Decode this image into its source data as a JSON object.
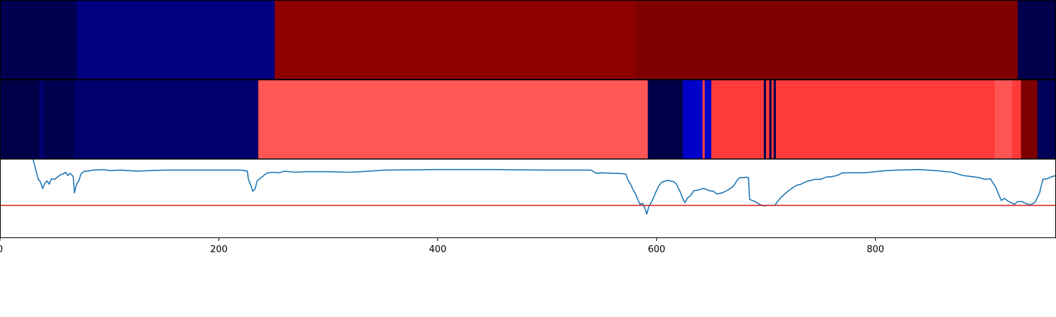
{
  "chart_data": {
    "type": "heatmap",
    "xlim": [
      0,
      965
    ],
    "x_ticks": [
      {
        "value": 0,
        "label": "0"
      },
      {
        "value": 200,
        "label": "200"
      },
      {
        "value": 400,
        "label": "400"
      },
      {
        "value": 600,
        "label": "600"
      },
      {
        "value": 800,
        "label": "800"
      }
    ],
    "band_rows": [
      {
        "segments": [
          {
            "x0": 0,
            "x1": 70,
            "color": "#000050"
          },
          {
            "x0": 70,
            "x1": 251,
            "color": "#000080"
          },
          {
            "x0": 251,
            "x1": 580,
            "color": "#8e0000"
          },
          {
            "x0": 580,
            "x1": 930,
            "color": "#800000"
          },
          {
            "x0": 930,
            "x1": 965,
            "color": "#00004c"
          }
        ]
      },
      {
        "segments": [
          {
            "x0": 0,
            "x1": 36,
            "color": "#000048"
          },
          {
            "x0": 36,
            "x1": 40,
            "color": "#000070"
          },
          {
            "x0": 40,
            "x1": 68,
            "color": "#000050"
          },
          {
            "x0": 68,
            "x1": 236,
            "color": "#00006c"
          },
          {
            "x0": 236,
            "x1": 592,
            "color": "#ff5656"
          },
          {
            "x0": 592,
            "x1": 624,
            "color": "#000048"
          },
          {
            "x0": 624,
            "x1": 642,
            "color": "#0000c8"
          },
          {
            "x0": 642,
            "x1": 644,
            "color": "#ff4040"
          },
          {
            "x0": 644,
            "x1": 650,
            "color": "#0000c8"
          },
          {
            "x0": 650,
            "x1": 698,
            "color": "#ff3a3a"
          },
          {
            "x0": 698,
            "x1": 700,
            "color": "#000050"
          },
          {
            "x0": 700,
            "x1": 703,
            "color": "#ff3a3a"
          },
          {
            "x0": 703,
            "x1": 705,
            "color": "#000050"
          },
          {
            "x0": 705,
            "x1": 707,
            "color": "#ff3a3a"
          },
          {
            "x0": 707,
            "x1": 709,
            "color": "#000050"
          },
          {
            "x0": 709,
            "x1": 909,
            "color": "#ff3a3a"
          },
          {
            "x0": 909,
            "x1": 925,
            "color": "#ff5454"
          },
          {
            "x0": 925,
            "x1": 933,
            "color": "#ff3a3a"
          },
          {
            "x0": 933,
            "x1": 948,
            "color": "#7c0000"
          },
          {
            "x0": 948,
            "x1": 965,
            "color": "#000058"
          }
        ]
      }
    ],
    "line": {
      "color": "#1f77b4",
      "ylim": [
        -1.02,
        0.42
      ],
      "points": [
        [
          0,
          0.43
        ],
        [
          30,
          0.43
        ],
        [
          35,
          0.05
        ],
        [
          37,
          0.0
        ],
        [
          39,
          -0.12
        ],
        [
          41,
          -0.02
        ],
        [
          43,
          0.02
        ],
        [
          45,
          -0.04
        ],
        [
          47,
          0.06
        ],
        [
          50,
          0.05
        ],
        [
          53,
          0.1
        ],
        [
          56,
          0.14
        ],
        [
          58,
          0.15
        ],
        [
          60,
          0.18
        ],
        [
          62,
          0.12
        ],
        [
          64,
          0.16
        ],
        [
          66,
          0.12
        ],
        [
          67,
          0.1
        ],
        [
          68,
          -0.2
        ],
        [
          70,
          -0.04
        ],
        [
          72,
          0.02
        ],
        [
          74,
          0.15
        ],
        [
          77,
          0.2
        ],
        [
          80,
          0.2
        ],
        [
          85,
          0.22
        ],
        [
          95,
          0.23
        ],
        [
          100,
          0.21
        ],
        [
          110,
          0.22
        ],
        [
          125,
          0.2
        ],
        [
          150,
          0.22
        ],
        [
          200,
          0.22
        ],
        [
          220,
          0.22
        ],
        [
          226,
          0.2
        ],
        [
          227,
          0.05
        ],
        [
          229,
          -0.05
        ],
        [
          231,
          -0.17
        ],
        [
          233,
          -0.13
        ],
        [
          235,
          0.02
        ],
        [
          238,
          0.07
        ],
        [
          240,
          0.1
        ],
        [
          242,
          0.14
        ],
        [
          245,
          0.17
        ],
        [
          250,
          0.18
        ],
        [
          255,
          0.17
        ],
        [
          260,
          0.2
        ],
        [
          270,
          0.18
        ],
        [
          280,
          0.19
        ],
        [
          300,
          0.19
        ],
        [
          320,
          0.18
        ],
        [
          330,
          0.19
        ],
        [
          345,
          0.21
        ],
        [
          350,
          0.22
        ],
        [
          355,
          0.22
        ],
        [
          400,
          0.23
        ],
        [
          450,
          0.23
        ],
        [
          500,
          0.22
        ],
        [
          540,
          0.22
        ],
        [
          545,
          0.16
        ],
        [
          550,
          0.17
        ],
        [
          560,
          0.16
        ],
        [
          565,
          0.16
        ],
        [
          570,
          0.15
        ],
        [
          572,
          0.14
        ],
        [
          574,
          0.03
        ],
        [
          576,
          -0.03
        ],
        [
          579,
          -0.16
        ],
        [
          581,
          -0.23
        ],
        [
          583,
          -0.33
        ],
        [
          585,
          -0.42
        ],
        [
          587,
          -0.39
        ],
        [
          589,
          -0.46
        ],
        [
          591,
          -0.59
        ],
        [
          593,
          -0.45
        ],
        [
          595,
          -0.38
        ],
        [
          597,
          -0.3
        ],
        [
          599,
          -0.2
        ],
        [
          602,
          -0.07
        ],
        [
          605,
          0.0
        ],
        [
          610,
          0.03
        ],
        [
          615,
          0.01
        ],
        [
          618,
          -0.03
        ],
        [
          620,
          -0.12
        ],
        [
          622,
          -0.2
        ],
        [
          624,
          -0.31
        ],
        [
          626,
          -0.38
        ],
        [
          628,
          -0.3
        ],
        [
          631,
          -0.25
        ],
        [
          634,
          -0.16
        ],
        [
          638,
          -0.15
        ],
        [
          642,
          -0.12
        ],
        [
          645,
          -0.13
        ],
        [
          648,
          -0.16
        ],
        [
          652,
          -0.17
        ],
        [
          655,
          -0.22
        ],
        [
          660,
          -0.2
        ],
        [
          665,
          -0.15
        ],
        [
          670,
          -0.08
        ],
        [
          674,
          0.04
        ],
        [
          676,
          0.08
        ],
        [
          680,
          0.08
        ],
        [
          682,
          0.09
        ],
        [
          684,
          0.08
        ],
        [
          685,
          -0.32
        ],
        [
          690,
          -0.36
        ],
        [
          694,
          -0.41
        ],
        [
          698,
          -0.44
        ],
        [
          702,
          -0.43
        ],
        [
          708,
          -0.43
        ],
        [
          712,
          -0.32
        ],
        [
          716,
          -0.24
        ],
        [
          720,
          -0.17
        ],
        [
          724,
          -0.11
        ],
        [
          728,
          -0.06
        ],
        [
          732,
          -0.04
        ],
        [
          737,
          0.01
        ],
        [
          741,
          0.03
        ],
        [
          745,
          0.05
        ],
        [
          750,
          0.05
        ],
        [
          755,
          0.09
        ],
        [
          760,
          0.1
        ],
        [
          765,
          0.12
        ],
        [
          770,
          0.17
        ],
        [
          775,
          0.17
        ],
        [
          780,
          0.17
        ],
        [
          790,
          0.17
        ],
        [
          800,
          0.19
        ],
        [
          810,
          0.21
        ],
        [
          820,
          0.22
        ],
        [
          840,
          0.23
        ],
        [
          855,
          0.21
        ],
        [
          870,
          0.18
        ],
        [
          880,
          0.12
        ],
        [
          888,
          0.1
        ],
        [
          895,
          0.08
        ],
        [
          900,
          0.05
        ],
        [
          905,
          0.06
        ],
        [
          910,
          -0.1
        ],
        [
          912,
          -0.2
        ],
        [
          915,
          -0.34
        ],
        [
          918,
          -0.3
        ],
        [
          921,
          -0.35
        ],
        [
          924,
          -0.38
        ],
        [
          927,
          -0.41
        ],
        [
          930,
          -0.36
        ],
        [
          934,
          -0.36
        ],
        [
          938,
          -0.4
        ],
        [
          942,
          -0.42
        ],
        [
          946,
          -0.37
        ],
        [
          950,
          -0.2
        ],
        [
          953,
          0.05
        ],
        [
          957,
          0.06
        ],
        [
          960,
          0.09
        ],
        [
          965,
          0.12
        ]
      ]
    },
    "hline": {
      "y": -0.43,
      "color": "#d62728"
    }
  }
}
